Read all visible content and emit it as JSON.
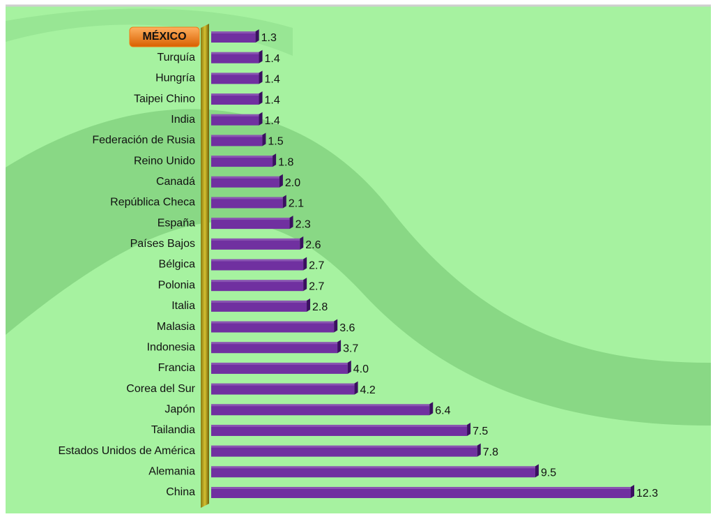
{
  "chart_data": {
    "type": "bar",
    "orientation": "horizontal",
    "categories": [
      "MÉXICO",
      "Turquía",
      "Hungría",
      "Taipei Chino",
      "India",
      "Federación de Rusia",
      "Reino Unido",
      "Canadá",
      "República Checa",
      "España",
      "Países Bajos",
      "Bélgica",
      "Polonia",
      "Italia",
      "Malasia",
      "Indonesia",
      "Francia",
      "Corea del Sur",
      "Japón",
      "Tailandia",
      "Estados Unidos de América",
      "Alemania",
      "China"
    ],
    "values": [
      1.3,
      1.4,
      1.4,
      1.4,
      1.4,
      1.5,
      1.8,
      2.0,
      2.1,
      2.3,
      2.6,
      2.7,
      2.7,
      2.8,
      3.6,
      3.7,
      4.0,
      4.2,
      6.4,
      7.5,
      7.8,
      9.5,
      12.3
    ],
    "value_labels": [
      "1.3",
      "1.4",
      "1.4",
      "1.4",
      "1.4",
      "1.5",
      "1.8",
      "2.0",
      "2.1",
      "2.3",
      "2.6",
      "2.7",
      "2.7",
      "2.8",
      "3.6",
      "3.7",
      "4.0",
      "4.2",
      "6.4",
      "7.5",
      "7.8",
      "9.5",
      "12.3"
    ],
    "color": "#7030a0",
    "highlighted_category": 0,
    "highlight_color": "#f07a14"
  }
}
